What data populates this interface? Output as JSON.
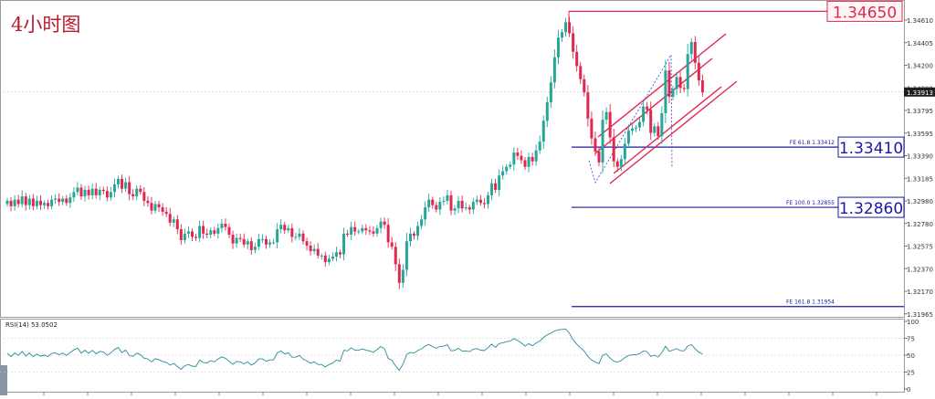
{
  "chart_title": "4小时图",
  "colors": {
    "bull": "#26a69a",
    "bear": "#e0284f",
    "channel": "#e0284f",
    "fib_line": "#1a1aa6",
    "high_line": "#e0284f",
    "rsi_line": "#2a8c96",
    "grid": "#e6e6e6",
    "axis_text": "#333333"
  },
  "price_axis": {
    "ylim": [
      1.3186,
      1.3472
    ],
    "ticks": [
      "1.34610",
      "1.34405",
      "1.34200",
      "1.34000",
      "1.33795",
      "1.33595",
      "1.33390",
      "1.33185",
      "1.32980",
      "1.32780",
      "1.32575",
      "1.32370",
      "1.32170",
      "1.31965"
    ],
    "current_price": "1.33913"
  },
  "levels": [
    {
      "label": "1.34650",
      "value": 1.3465,
      "style": "resistance"
    },
    {
      "label": "1.33410",
      "value": 1.3341,
      "style": "fib",
      "fib_text": "FE 61.8  1.33412"
    },
    {
      "label": "1.32860",
      "value": 1.3286,
      "style": "fib",
      "fib_text": "FE 100.0  1.32855"
    },
    {
      "value": 1.31954,
      "style": "fib",
      "fib_text": "FE 161.8  1.31954"
    }
  ],
  "rsi": {
    "label": "RSI(14) 53.0502",
    "ticks": [
      "100",
      "75",
      "50",
      "25",
      "0"
    ],
    "levels": [
      75,
      50,
      25
    ]
  },
  "chart_data": {
    "type": "candlestick",
    "title": "4小时图",
    "ylim": [
      1.3186,
      1.3472
    ],
    "candles_close": [
      1.3292,
      1.3287,
      1.3293,
      1.3289,
      1.3296,
      1.3288,
      1.3294,
      1.3287,
      1.3292,
      1.3288,
      1.329,
      1.3287,
      1.3293,
      1.3294,
      1.3291,
      1.3294,
      1.329,
      1.3295,
      1.33,
      1.3304,
      1.3296,
      1.3302,
      1.3297,
      1.3303,
      1.3297,
      1.3302,
      1.3301,
      1.3295,
      1.33,
      1.3307,
      1.3312,
      1.3303,
      1.3309,
      1.3298,
      1.3296,
      1.3303,
      1.33,
      1.3292,
      1.329,
      1.3283,
      1.3289,
      1.3286,
      1.3282,
      1.328,
      1.3272,
      1.3275,
      1.3266,
      1.3256,
      1.3262,
      1.3264,
      1.3259,
      1.3258,
      1.3269,
      1.3262,
      1.3261,
      1.3265,
      1.3262,
      1.3267,
      1.3271,
      1.3268,
      1.3261,
      1.3253,
      1.3258,
      1.3257,
      1.3252,
      1.3255,
      1.3247,
      1.325,
      1.3257,
      1.3257,
      1.3252,
      1.3254,
      1.3254,
      1.3266,
      1.327,
      1.3265,
      1.3267,
      1.3259,
      1.3259,
      1.3262,
      1.3255,
      1.3251,
      1.3246,
      1.3248,
      1.3242,
      1.3242,
      1.3236,
      1.3239,
      1.3241,
      1.3245,
      1.3243,
      1.3262,
      1.3261,
      1.3268,
      1.3264,
      1.3264,
      1.3267,
      1.3265,
      1.3264,
      1.3262,
      1.3267,
      1.3273,
      1.327,
      1.3254,
      1.325,
      1.3234,
      1.3217,
      1.3229,
      1.3255,
      1.3262,
      1.326,
      1.3269,
      1.3275,
      1.3286,
      1.3293,
      1.3288,
      1.3284,
      1.3291,
      1.3292,
      1.3297,
      1.3283,
      1.3285,
      1.3292,
      1.3285,
      1.3286,
      1.3284,
      1.3291,
      1.3293,
      1.329,
      1.3289,
      1.3297,
      1.3308,
      1.3302,
      1.3315,
      1.3319,
      1.3323,
      1.3325,
      1.3336,
      1.3333,
      1.3329,
      1.3323,
      1.3332,
      1.3328,
      1.3338,
      1.3346,
      1.3365,
      1.3382,
      1.34,
      1.3423,
      1.3441,
      1.3446,
      1.3455,
      1.3445,
      1.3428,
      1.3415,
      1.3403,
      1.3391,
      1.3367,
      1.3349,
      1.3337,
      1.3327,
      1.3366,
      1.3373,
      1.335,
      1.3328,
      1.3323,
      1.333,
      1.3344,
      1.3356,
      1.3358,
      1.3359,
      1.3364,
      1.3378,
      1.3375,
      1.3354,
      1.336,
      1.3351,
      1.3372,
      1.3411,
      1.3387,
      1.3394,
      1.3405,
      1.3395,
      1.3394,
      1.3426,
      1.3437,
      1.3418,
      1.3402,
      1.3391
    ]
  }
}
